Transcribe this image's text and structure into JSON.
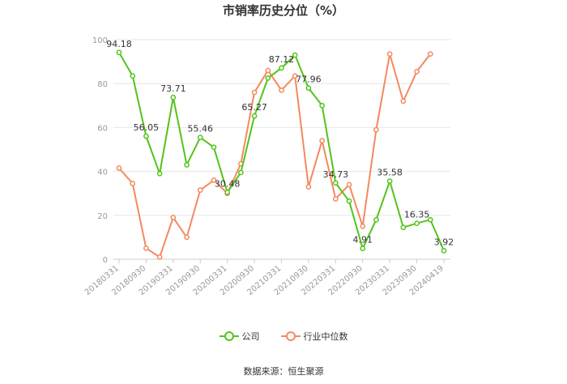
{
  "title": "市销率历史分位（%）",
  "source": "数据来源：恒生聚源",
  "colors": {
    "company": "#52c41a",
    "industry": "#f4895f",
    "grid": "#e6e6e6",
    "axis": "#999999"
  },
  "chart_data": {
    "type": "line",
    "title": "市销率历史分位（%）",
    "ylim": [
      0,
      100
    ],
    "yticks": [
      0,
      20,
      40,
      60,
      80,
      100
    ],
    "xtick_labels": [
      "20180331",
      "20180930",
      "20190331",
      "20190930",
      "20200331",
      "20200930",
      "20210331",
      "20210930",
      "20220331",
      "20220930",
      "20230331",
      "20230930",
      "20240419"
    ],
    "legend": "bottom-center",
    "grid": true,
    "series": [
      {
        "name": "公司",
        "color": "#52c41a",
        "values": [
          94.18,
          83.5,
          56.05,
          39,
          73.71,
          43,
          55.46,
          51,
          30.48,
          39.5,
          65.27,
          82.5,
          87.12,
          93,
          77.96,
          70,
          34.73,
          26.5,
          4.91,
          18,
          35.58,
          14.5,
          16.35,
          18,
          3.92
        ],
        "labels": {
          "0": "94.18",
          "2": "56.05",
          "4": "73.71",
          "6": "55.46",
          "8": "30.48",
          "10": "65.27",
          "12": "87.12",
          "14": "77.96",
          "16": "34.73",
          "18": "4.91",
          "20": "35.58",
          "22": "16.35",
          "24": "3.92"
        }
      },
      {
        "name": "行业中位数",
        "color": "#f4895f",
        "values": [
          41.5,
          34.5,
          5,
          1,
          19,
          10,
          31.5,
          36,
          30,
          43.5,
          76,
          86,
          77,
          83.5,
          33,
          54,
          27.5,
          34,
          15,
          59,
          93.5,
          72,
          85.5,
          93.5,
          null
        ]
      }
    ]
  }
}
